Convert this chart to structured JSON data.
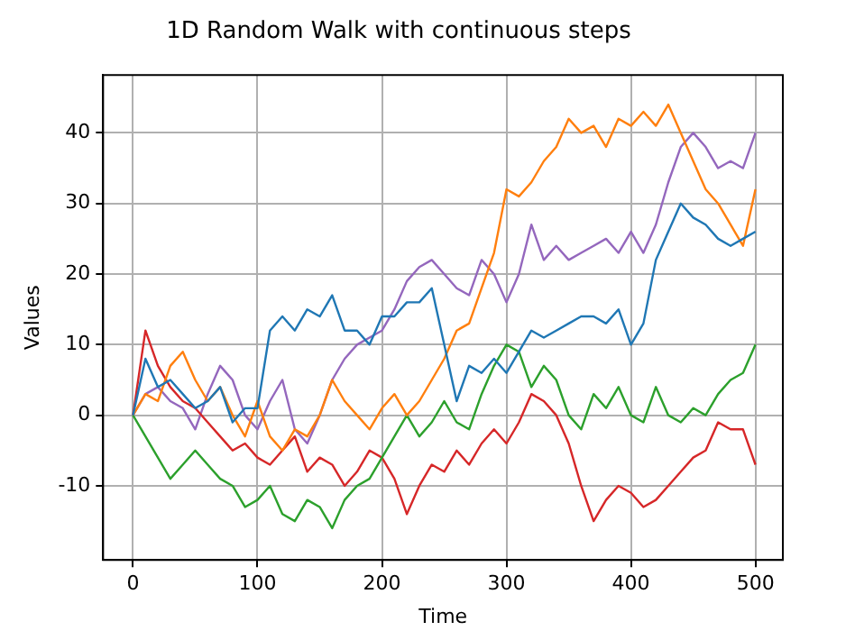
{
  "chart_data": {
    "type": "line",
    "title": "1D Random Walk with continuous steps",
    "xlabel": "Time",
    "ylabel": "Values",
    "x": [
      0,
      10,
      20,
      30,
      40,
      50,
      60,
      70,
      80,
      90,
      100,
      110,
      120,
      130,
      140,
      150,
      160,
      170,
      180,
      190,
      200,
      210,
      220,
      230,
      240,
      250,
      260,
      270,
      280,
      290,
      300,
      310,
      320,
      330,
      340,
      350,
      360,
      370,
      380,
      390,
      400,
      410,
      420,
      430,
      440,
      450,
      460,
      470,
      480,
      490,
      500
    ],
    "series": [
      {
        "color": "#1f77b4",
        "values": [
          0,
          8,
          4,
          5,
          3,
          1,
          2,
          4,
          -1,
          1,
          1,
          12,
          14,
          12,
          15,
          14,
          17,
          12,
          12,
          10,
          14,
          14,
          16,
          16,
          18,
          10,
          2,
          7,
          6,
          8,
          6,
          9,
          12,
          11,
          12,
          13,
          14,
          14,
          13,
          15,
          10,
          13,
          22,
          26,
          30,
          28,
          27,
          25,
          24,
          25,
          26
        ]
      },
      {
        "color": "#ff7f0e",
        "values": [
          0,
          3,
          2,
          7,
          9,
          5,
          2,
          4,
          0,
          -3,
          2,
          -3,
          -5,
          -2,
          -3,
          0,
          5,
          2,
          0,
          -2,
          1,
          3,
          0,
          2,
          5,
          8,
          12,
          13,
          18,
          23,
          32,
          31,
          33,
          36,
          38,
          42,
          40,
          41,
          38,
          42,
          41,
          43,
          41,
          44,
          40,
          36,
          32,
          30,
          27,
          24,
          32
        ]
      },
      {
        "color": "#2ca02c",
        "values": [
          0,
          -3,
          -6,
          -9,
          -7,
          -5,
          -7,
          -9,
          -10,
          -13,
          -12,
          -10,
          -14,
          -15,
          -12,
          -13,
          -16,
          -12,
          -10,
          -9,
          -6,
          -3,
          0,
          -3,
          -1,
          2,
          -1,
          -2,
          3,
          7,
          10,
          9,
          4,
          7,
          5,
          0,
          -2,
          3,
          1,
          4,
          0,
          -1,
          4,
          0,
          -1,
          1,
          0,
          3,
          5,
          6,
          10
        ]
      },
      {
        "color": "#d62728",
        "values": [
          0,
          12,
          7,
          4,
          2,
          1,
          -1,
          -3,
          -5,
          -4,
          -6,
          -7,
          -5,
          -3,
          -8,
          -6,
          -7,
          -10,
          -8,
          -5,
          -6,
          -9,
          -14,
          -10,
          -7,
          -8,
          -5,
          -7,
          -4,
          -2,
          -4,
          -1,
          3,
          2,
          0,
          -4,
          -10,
          -15,
          -12,
          -10,
          -11,
          -13,
          -12,
          -10,
          -8,
          -6,
          -5,
          -1,
          -2,
          -2,
          -7
        ]
      },
      {
        "color": "#9467bd",
        "values": [
          0,
          3,
          4,
          2,
          1,
          -2,
          3,
          7,
          5,
          0,
          -2,
          2,
          5,
          -2,
          -4,
          0,
          5,
          8,
          10,
          11,
          12,
          15,
          19,
          21,
          22,
          20,
          18,
          17,
          22,
          20,
          16,
          20,
          27,
          22,
          24,
          22,
          23,
          24,
          25,
          23,
          26,
          23,
          27,
          33,
          38,
          40,
          38,
          35,
          36,
          35,
          40
        ]
      }
    ],
    "xlim": [
      -24,
      522
    ],
    "ylim": [
      -20.5,
      48.2
    ],
    "xticks": [
      0,
      100,
      200,
      300,
      400,
      500
    ],
    "yticks": [
      -10,
      0,
      10,
      20,
      30,
      40
    ],
    "grid": true,
    "legend": false
  }
}
